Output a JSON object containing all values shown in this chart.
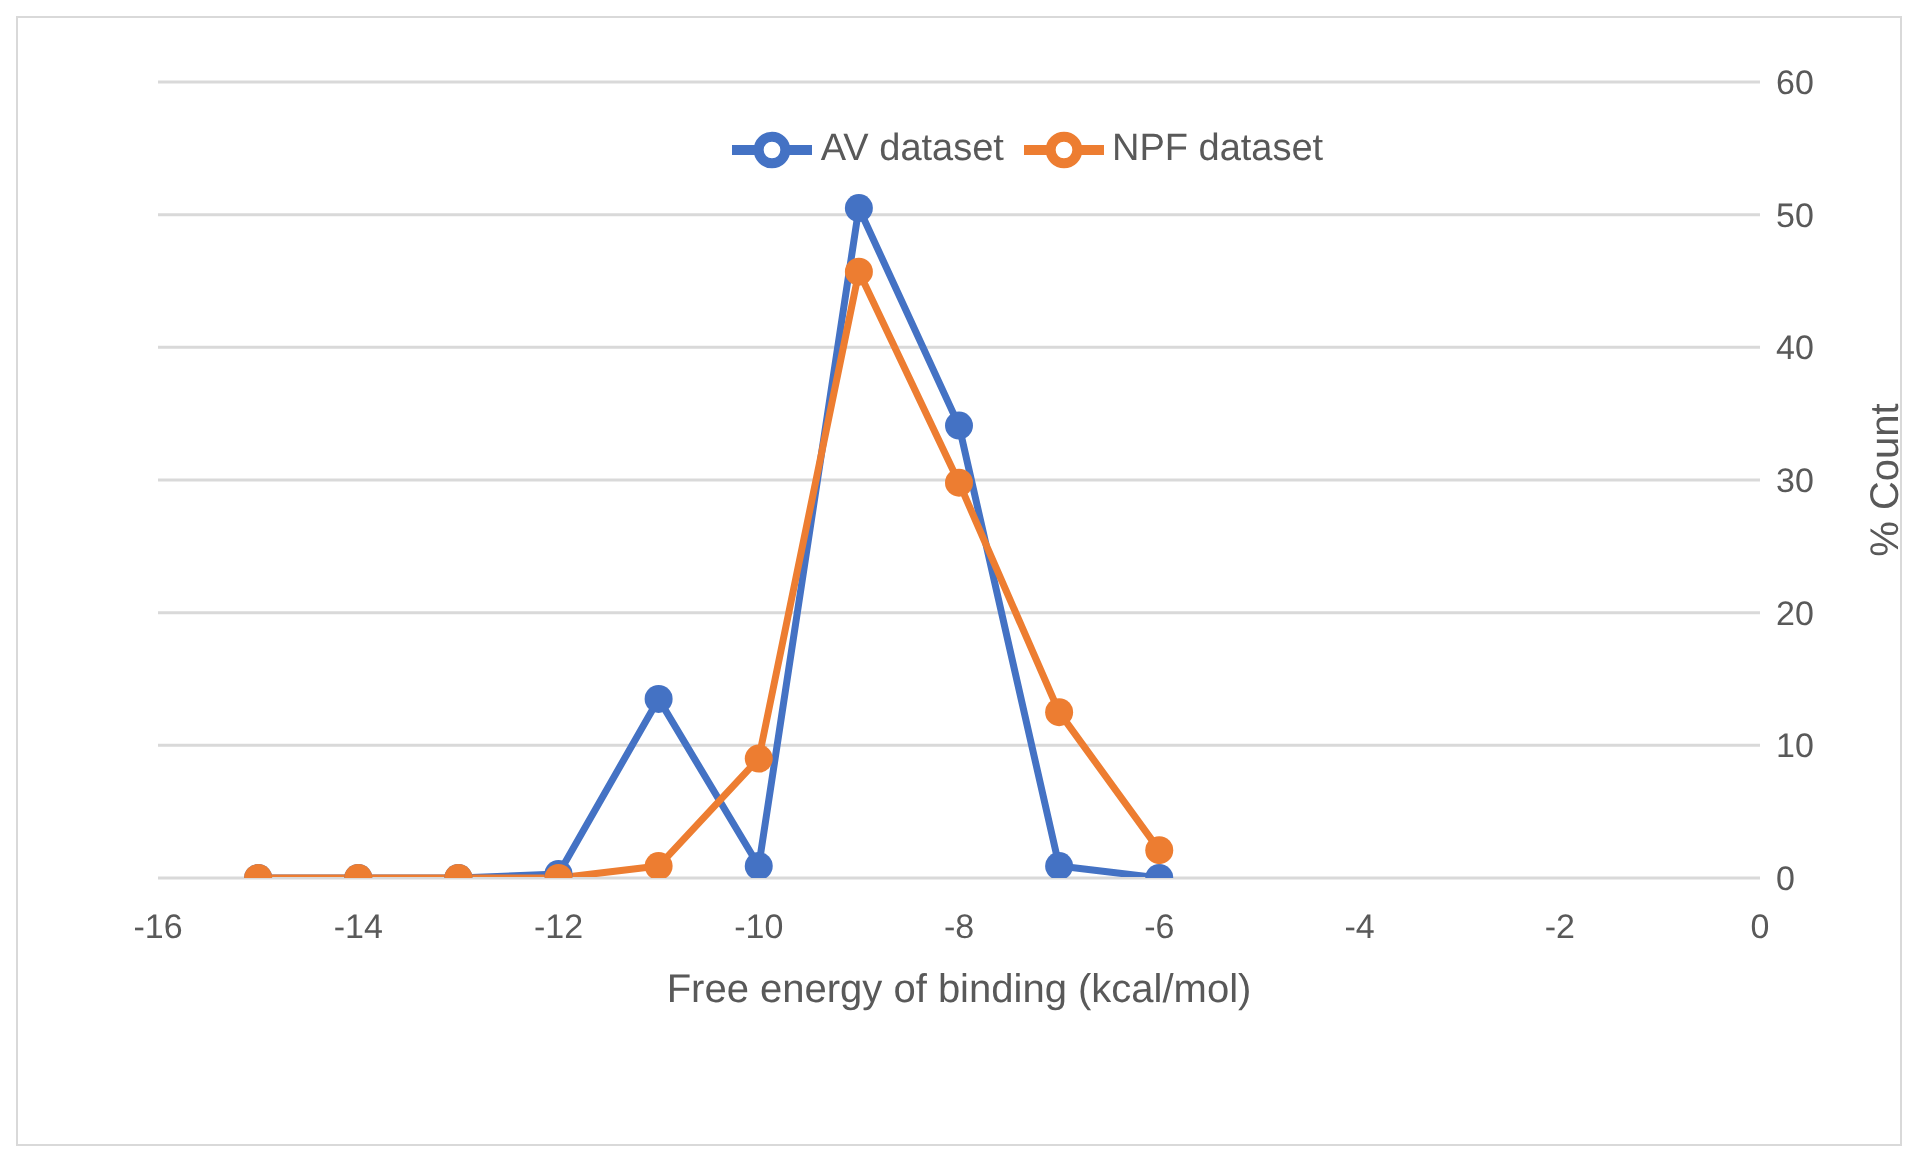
{
  "chart_data": {
    "type": "line",
    "xlabel": "Free energy of binding (kcal/mol)",
    "ylabel": "% Count",
    "x": [
      -15,
      -14,
      -13,
      -12,
      -11,
      -10,
      -9,
      -8,
      -7,
      -6
    ],
    "series": [
      {
        "name": "AV dataset",
        "color": "#4472c4",
        "values": [
          0,
          0,
          0,
          0.3,
          13.5,
          0.9,
          50.5,
          34.1,
          0.9,
          0
        ]
      },
      {
        "name": "NPF dataset",
        "color": "#ed7d31",
        "values": [
          0,
          0,
          0,
          0,
          0.9,
          9,
          45.7,
          29.8,
          12.5,
          2.1
        ]
      }
    ],
    "xlim": [
      -16,
      0
    ],
    "xticks": [
      -16,
      -14,
      -12,
      -10,
      -8,
      -6,
      -4,
      -2,
      0
    ],
    "ylim": [
      0,
      60
    ],
    "yticks": [
      0,
      10,
      20,
      30,
      40,
      50,
      60
    ],
    "grid": "y",
    "legend": "top",
    "marker": "circle",
    "line_style": "solid"
  }
}
